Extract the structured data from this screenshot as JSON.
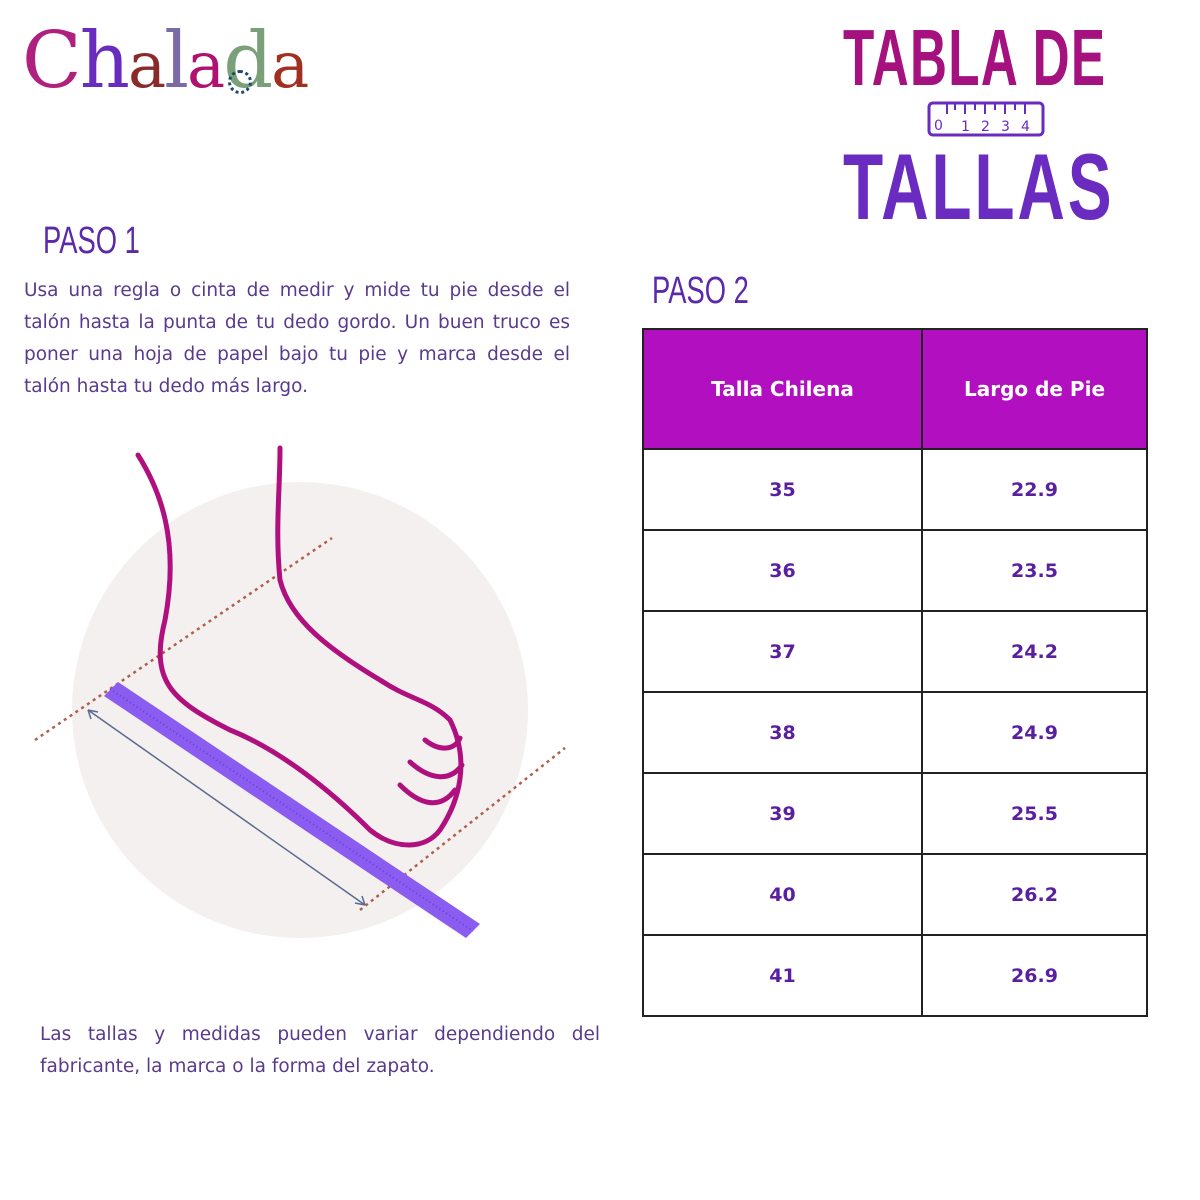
{
  "brand": {
    "logo_text": "Chalada"
  },
  "title": {
    "line1": "TABLA DE",
    "line2": "TALLAS",
    "ruler_numbers": [
      "0",
      "1",
      "2",
      "3",
      "4"
    ]
  },
  "step1": {
    "heading": "PASO 1",
    "text": "Usa una regla o cinta de medir y mide tu pie desde el talón hasta la punta de tu dedo gordo. Un buen truco es poner una hoja de papel bajo tu pie y marca desde el talón hasta tu dedo más largo."
  },
  "step2": {
    "heading": "PASO 2"
  },
  "table": {
    "headers": [
      "Talla Chilena",
      "Largo de Pie"
    ],
    "rows": [
      [
        "35",
        "22.9"
      ],
      [
        "36",
        "23.5"
      ],
      [
        "37",
        "24.2"
      ],
      [
        "38",
        "24.9"
      ],
      [
        "39",
        "25.5"
      ],
      [
        "40",
        "26.2"
      ],
      [
        "41",
        "26.9"
      ]
    ]
  },
  "note": "Las tallas y medidas pueden variar dependiendo del fabricante, la marca o la forma del zapato.",
  "colors": {
    "magenta": "#a5117f",
    "purple": "#6a2cc0",
    "header": "#b10fbf",
    "foot": "#b0107e",
    "ruler": "#8a5cf0"
  }
}
